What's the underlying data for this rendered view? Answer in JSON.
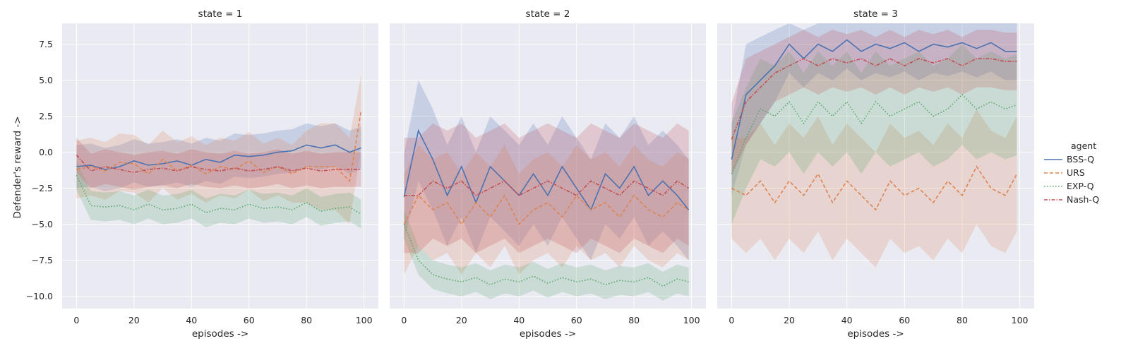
{
  "chart_data": {
    "type": "line",
    "ylabel": "Defender's reward ->",
    "xlabel": "episodes ->",
    "xlim": [
      -5,
      105
    ],
    "ylim": [
      -10.85,
      8.95
    ],
    "x_ticks": [
      0,
      20,
      40,
      60,
      80,
      100
    ],
    "y_ticks": [
      -10.0,
      -7.5,
      -5.0,
      -2.5,
      0.0,
      2.5,
      5.0,
      7.5
    ],
    "y_tick_labels": [
      "−10.0",
      "−7.5",
      "−5.0",
      "−2.5",
      "0.0",
      "2.5",
      "5.0",
      "7.5"
    ],
    "grid": true,
    "legend": {
      "title": "agent",
      "position": "right",
      "entries": [
        "BSS-Q",
        "URS",
        "EXP-Q",
        "Nash-Q"
      ]
    },
    "series_styles": [
      {
        "name": "BSS-Q",
        "color": "#4c72b0",
        "dash": "none"
      },
      {
        "name": "URS",
        "color": "#dd8452",
        "dash": "5,3"
      },
      {
        "name": "EXP-Q",
        "color": "#55a868",
        "dash": "1.5,2.5"
      },
      {
        "name": "Nash-Q",
        "color": "#c44e52",
        "dash": "5,2,1.5,2"
      }
    ],
    "panels": [
      {
        "title": "state = 1",
        "x": [
          0,
          5,
          10,
          15,
          20,
          25,
          30,
          35,
          40,
          45,
          50,
          55,
          60,
          65,
          70,
          75,
          80,
          85,
          90,
          95,
          99
        ],
        "series": [
          {
            "name": "BSS-Q",
            "values": [
              -1.0,
              -0.9,
              -1.2,
              -1.0,
              -0.6,
              -0.9,
              -0.8,
              -0.6,
              -0.9,
              -0.5,
              -0.7,
              -0.2,
              -0.3,
              -0.2,
              0.0,
              0.1,
              0.5,
              0.3,
              0.5,
              0.0,
              0.3
            ],
            "band": [
              1.5,
              1.5,
              1.5,
              1.5,
              1.5,
              1.5,
              1.5,
              1.5,
              1.5,
              1.5,
              1.5,
              1.5,
              1.5,
              1.5,
              1.5,
              1.5,
              1.5,
              1.5,
              1.5,
              1.5,
              1.5
            ]
          },
          {
            "name": "URS",
            "values": [
              -1.2,
              -1.0,
              -1.3,
              -0.7,
              -0.8,
              -1.5,
              -0.5,
              -1.3,
              -0.9,
              -1.5,
              -1.0,
              -1.2,
              -0.6,
              -1.4,
              -1.0,
              -1.5,
              -1.0,
              -1.0,
              -1.0,
              -2.0,
              2.9
            ],
            "band": [
              2.0,
              2.0,
              2.0,
              2.0,
              2.0,
              2.0,
              2.0,
              2.0,
              2.0,
              2.0,
              2.0,
              2.0,
              2.0,
              2.0,
              2.0,
              2.0,
              2.5,
              3.0,
              3.0,
              3.0,
              2.5
            ]
          },
          {
            "name": "EXP-Q",
            "values": [
              -1.6,
              -3.7,
              -3.8,
              -3.7,
              -4.0,
              -3.6,
              -4.0,
              -3.9,
              -3.6,
              -4.2,
              -3.9,
              -4.0,
              -3.6,
              -3.9,
              -3.8,
              -4.0,
              -3.5,
              -4.1,
              -3.9,
              -3.8,
              -4.3
            ],
            "band": [
              1.0,
              1.0,
              1.0,
              1.0,
              1.0,
              1.0,
              1.0,
              1.0,
              1.0,
              1.0,
              1.0,
              1.0,
              1.0,
              1.0,
              1.0,
              1.0,
              1.0,
              1.0,
              1.0,
              1.0,
              1.0
            ]
          },
          {
            "name": "Nash-Q",
            "values": [
              -0.2,
              -1.3,
              -1.0,
              -1.2,
              -1.4,
              -1.2,
              -1.1,
              -1.3,
              -1.0,
              -1.2,
              -1.3,
              -1.1,
              -1.3,
              -1.2,
              -1.0,
              -1.3,
              -1.1,
              -1.3,
              -1.2,
              -1.2,
              -1.2
            ],
            "band": [
              1.2,
              1.2,
              1.2,
              1.2,
              1.2,
              1.2,
              1.2,
              1.2,
              1.2,
              1.2,
              1.2,
              1.2,
              1.2,
              1.2,
              1.2,
              1.2,
              1.2,
              1.2,
              1.2,
              1.2,
              1.2
            ]
          }
        ]
      },
      {
        "title": "state = 2",
        "x": [
          0,
          5,
          10,
          15,
          20,
          25,
          30,
          35,
          40,
          45,
          50,
          55,
          60,
          65,
          70,
          75,
          80,
          85,
          90,
          95,
          99
        ],
        "series": [
          {
            "name": "BSS-Q",
            "values": [
              -3.1,
              1.5,
              -0.5,
              -3.0,
              -1.0,
              -3.5,
              -1.0,
              -2.0,
              -3.0,
              -1.5,
              -3.0,
              -1.0,
              -2.5,
              -4.0,
              -1.5,
              -2.5,
              -1.0,
              -3.0,
              -2.0,
              -3.0,
              -4.0
            ],
            "band": [
              3.0,
              3.5,
              3.5,
              3.5,
              3.5,
              3.5,
              3.5,
              3.5,
              3.5,
              3.5,
              3.5,
              3.5,
              3.5,
              3.5,
              3.5,
              3.5,
              3.5,
              3.5,
              3.5,
              3.5,
              3.5
            ]
          },
          {
            "name": "URS",
            "values": [
              -5.0,
              -3.0,
              -4.0,
              -3.5,
              -5.0,
              -3.5,
              -4.5,
              -3.0,
              -5.0,
              -4.0,
              -3.5,
              -4.5,
              -3.0,
              -4.0,
              -3.5,
              -4.5,
              -3.0,
              -4.0,
              -4.5,
              -3.5,
              -4.0
            ],
            "band": [
              3.5,
              3.5,
              3.5,
              3.5,
              3.5,
              3.5,
              3.5,
              3.5,
              3.5,
              3.5,
              3.5,
              3.5,
              3.5,
              3.5,
              3.5,
              3.5,
              3.5,
              3.5,
              3.5,
              3.5,
              3.5
            ]
          },
          {
            "name": "EXP-Q",
            "values": [
              -5.0,
              -7.5,
              -8.5,
              -8.8,
              -9.0,
              -8.7,
              -9.2,
              -8.8,
              -9.0,
              -8.6,
              -9.1,
              -8.7,
              -9.0,
              -8.8,
              -9.2,
              -8.9,
              -9.0,
              -8.7,
              -9.3,
              -8.8,
              -9.0
            ],
            "band": [
              1.0,
              1.0,
              1.0,
              1.0,
              1.0,
              1.0,
              1.0,
              1.0,
              1.0,
              1.0,
              1.0,
              1.0,
              1.0,
              1.0,
              1.0,
              1.0,
              1.0,
              1.0,
              1.0,
              1.0,
              1.0
            ]
          },
          {
            "name": "Nash-Q",
            "values": [
              -3.0,
              -3.0,
              -2.0,
              -2.5,
              -2.0,
              -3.0,
              -2.5,
              -2.0,
              -3.0,
              -2.5,
              -2.0,
              -2.5,
              -3.0,
              -2.0,
              -2.5,
              -3.0,
              -2.0,
              -2.5,
              -3.0,
              -2.0,
              -2.5
            ],
            "band": [
              4.0,
              4.0,
              4.0,
              4.0,
              4.0,
              4.0,
              4.0,
              4.0,
              4.0,
              4.0,
              4.0,
              4.0,
              4.0,
              4.0,
              4.0,
              4.0,
              4.0,
              4.0,
              4.0,
              4.0,
              4.0
            ]
          }
        ]
      },
      {
        "title": "state = 3",
        "x": [
          0,
          5,
          10,
          15,
          20,
          25,
          30,
          35,
          40,
          45,
          50,
          55,
          60,
          65,
          70,
          75,
          80,
          85,
          90,
          95,
          99
        ],
        "series": [
          {
            "name": "BSS-Q",
            "values": [
              -0.5,
              4.0,
              5.0,
              6.0,
              7.5,
              6.5,
              7.5,
              7.0,
              7.8,
              7.0,
              7.5,
              7.2,
              7.6,
              7.0,
              7.5,
              7.3,
              7.6,
              7.2,
              7.6,
              7.0,
              7.0
            ],
            "band": [
              2.5,
              3.5,
              3.0,
              2.5,
              2.0,
              2.0,
              2.0,
              2.0,
              2.0,
              2.0,
              2.0,
              2.0,
              2.0,
              2.0,
              2.0,
              2.0,
              2.0,
              2.0,
              2.0,
              2.0,
              2.0
            ]
          },
          {
            "name": "URS",
            "values": [
              -2.5,
              -3.0,
              -2.0,
              -3.5,
              -2.0,
              -3.0,
              -1.5,
              -3.5,
              -2.0,
              -3.0,
              -4.0,
              -2.0,
              -3.0,
              -2.5,
              -3.5,
              -2.0,
              -3.0,
              -1.0,
              -2.5,
              -3.0,
              -1.5
            ],
            "band": [
              3.5,
              4.0,
              4.0,
              4.0,
              4.0,
              4.0,
              4.0,
              4.0,
              4.0,
              4.0,
              4.0,
              4.0,
              4.0,
              4.0,
              4.0,
              4.0,
              4.0,
              4.0,
              4.0,
              4.0,
              4.0
            ]
          },
          {
            "name": "EXP-Q",
            "values": [
              -1.5,
              1.0,
              3.0,
              2.5,
              3.5,
              2.0,
              3.5,
              2.5,
              3.5,
              2.0,
              3.5,
              2.5,
              3.0,
              3.5,
              2.5,
              3.0,
              4.0,
              3.0,
              3.5,
              3.0,
              3.3
            ],
            "band": [
              3.5,
              3.5,
              3.5,
              3.5,
              3.5,
              3.5,
              3.5,
              3.5,
              3.5,
              3.5,
              3.5,
              3.5,
              3.5,
              3.5,
              3.5,
              3.5,
              3.5,
              3.5,
              3.5,
              3.5,
              3.5
            ]
          },
          {
            "name": "Nash-Q",
            "values": [
              0.9,
              3.5,
              4.5,
              5.5,
              6.0,
              6.5,
              6.0,
              6.5,
              6.2,
              6.5,
              6.0,
              6.5,
              6.0,
              6.5,
              6.2,
              6.5,
              6.0,
              6.5,
              6.5,
              6.3,
              6.3
            ],
            "band": [
              2.5,
              3.0,
              2.5,
              2.0,
              2.0,
              2.0,
              2.0,
              2.0,
              2.0,
              2.0,
              2.0,
              2.0,
              2.0,
              2.0,
              2.0,
              2.0,
              2.0,
              2.0,
              2.0,
              2.0,
              2.0
            ]
          }
        ]
      }
    ]
  }
}
